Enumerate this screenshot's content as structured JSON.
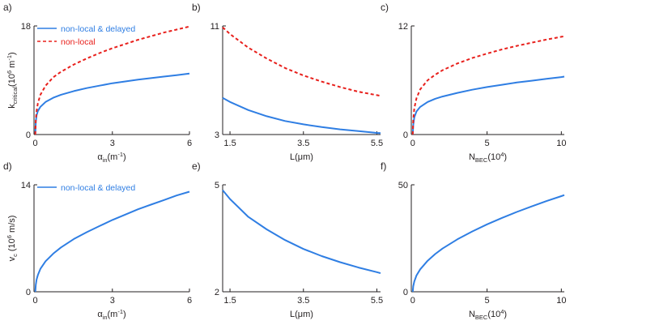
{
  "colors": {
    "solid": "#2f7ee3",
    "dashed": "#e8201c",
    "axis": "#231f20",
    "text": "#231f20"
  },
  "chart_data": [
    {
      "panel": "a)",
      "type": "line",
      "xlabel": {
        "main": "α",
        "sub": "in",
        "rest": "(m",
        "sup": "-1",
        "close": ")"
      },
      "ylabel": {
        "main": "k",
        "sub": "critical",
        "rest": "(10",
        "sup": "6",
        "rest2": " m",
        "sup2": "-1",
        "close": ")"
      },
      "xlim": [
        -0.05,
        6
      ],
      "ylim": [
        0,
        18
      ],
      "xticks": [
        0,
        3,
        6
      ],
      "xtick_labels": [
        "0",
        "3",
        "6"
      ],
      "yticks": [
        0,
        18
      ],
      "ytick_labels": [
        "0",
        "18"
      ],
      "legend": {
        "position": "top-left",
        "entries": [
          "non-local & delayed",
          "non-local"
        ]
      },
      "series": [
        {
          "name": "non-local & delayed",
          "style": "solid",
          "x": [
            0,
            0.02,
            0.05,
            0.1,
            0.2,
            0.4,
            0.7,
            1.0,
            1.5,
            2.0,
            2.5,
            3.0,
            3.5,
            4.0,
            4.5,
            5.0,
            5.5,
            6.0
          ],
          "y": [
            0,
            2.1,
            3.2,
            3.9,
            4.6,
            5.4,
            6.1,
            6.6,
            7.2,
            7.7,
            8.1,
            8.5,
            8.8,
            9.1,
            9.35,
            9.6,
            9.85,
            10.1
          ]
        },
        {
          "name": "non-local",
          "style": "dashed",
          "x": [
            0,
            0.02,
            0.05,
            0.1,
            0.2,
            0.4,
            0.7,
            1.0,
            1.5,
            2.0,
            2.5,
            3.0,
            3.5,
            4.0,
            4.5,
            5.0,
            5.5,
            6.0
          ],
          "y": [
            0,
            2.4,
            3.9,
            5.2,
            6.6,
            8.1,
            9.5,
            10.4,
            11.6,
            12.6,
            13.5,
            14.3,
            15.0,
            15.7,
            16.3,
            16.9,
            17.4,
            17.9
          ]
        }
      ]
    },
    {
      "panel": "b)",
      "type": "line",
      "xlabel": {
        "main": "L(μm)"
      },
      "xlim": [
        1.3,
        5.6
      ],
      "ylim": [
        3,
        11
      ],
      "xticks": [
        1.5,
        3.5,
        5.5
      ],
      "xtick_labels": [
        "1.5",
        "3.5",
        "5.5"
      ],
      "yticks": [
        3,
        11
      ],
      "ytick_labels": [
        "3",
        "11"
      ],
      "series": [
        {
          "name": "non-local & delayed",
          "style": "solid",
          "x": [
            1.3,
            1.5,
            2.0,
            2.5,
            3.0,
            3.5,
            4.0,
            4.5,
            5.0,
            5.5,
            5.6
          ],
          "y": [
            5.7,
            5.4,
            4.8,
            4.35,
            4.0,
            3.75,
            3.55,
            3.38,
            3.25,
            3.12,
            3.1
          ]
        },
        {
          "name": "non-local",
          "style": "dashed",
          "x": [
            1.3,
            1.5,
            2.0,
            2.5,
            3.0,
            3.5,
            4.0,
            4.5,
            5.0,
            5.5,
            5.6
          ],
          "y": [
            10.9,
            10.4,
            9.4,
            8.6,
            7.9,
            7.35,
            6.9,
            6.5,
            6.15,
            5.9,
            5.85
          ]
        }
      ]
    },
    {
      "panel": "c)",
      "type": "line",
      "xlabel": {
        "main": "N",
        "sub": "BEC",
        "rest": "(10",
        "sup": "4",
        "close": ")"
      },
      "xlim": [
        -0.1,
        10.2
      ],
      "ylim": [
        0,
        12
      ],
      "xticks": [
        0,
        5,
        10
      ],
      "xtick_labels": [
        "0",
        "5",
        "10"
      ],
      "yticks": [
        0,
        12
      ],
      "ytick_labels": [
        "0",
        "12"
      ],
      "series": [
        {
          "name": "non-local & delayed",
          "style": "solid",
          "x": [
            0,
            0.03,
            0.1,
            0.25,
            0.5,
            1.0,
            1.5,
            2.0,
            3.0,
            4.0,
            5.0,
            6.0,
            7.0,
            8.0,
            9.0,
            10.0,
            10.2
          ],
          "y": [
            0,
            1.05,
            1.9,
            2.55,
            3.05,
            3.6,
            3.95,
            4.2,
            4.6,
            4.95,
            5.25,
            5.5,
            5.75,
            5.95,
            6.15,
            6.35,
            6.4
          ]
        },
        {
          "name": "non-local",
          "style": "dashed",
          "x": [
            0,
            0.03,
            0.1,
            0.25,
            0.5,
            1.0,
            1.5,
            2.0,
            3.0,
            4.0,
            5.0,
            6.0,
            7.0,
            8.0,
            9.0,
            10.0,
            10.2
          ],
          "y": [
            0,
            1.6,
            2.9,
            4.0,
            5.0,
            6.0,
            6.6,
            7.1,
            7.85,
            8.45,
            8.95,
            9.4,
            9.8,
            10.15,
            10.5,
            10.8,
            10.85
          ]
        }
      ]
    },
    {
      "panel": "d)",
      "type": "line",
      "xlabel": {
        "main": "α",
        "sub": "in",
        "rest": "(m",
        "sup": "-1",
        "close": ")"
      },
      "ylabel": {
        "main": "v",
        "sub": "c",
        "rest": " (10",
        "sup": "6",
        "rest2": " m/s)"
      },
      "xlim": [
        -0.05,
        6
      ],
      "ylim": [
        0,
        14
      ],
      "xticks": [
        0,
        3,
        6
      ],
      "xtick_labels": [
        "0",
        "3",
        "6"
      ],
      "yticks": [
        0,
        14
      ],
      "ytick_labels": [
        "0",
        "14"
      ],
      "legend": {
        "position": "top-left",
        "entries": [
          "non-local & delayed"
        ]
      },
      "series": [
        {
          "name": "non-local & delayed",
          "style": "solid",
          "x": [
            0,
            0.02,
            0.05,
            0.1,
            0.2,
            0.4,
            0.7,
            1.0,
            1.5,
            2.0,
            2.5,
            3.0,
            3.5,
            4.0,
            4.5,
            5.0,
            5.5,
            6.0
          ],
          "y": [
            0,
            0.9,
            1.6,
            2.2,
            3.0,
            4.0,
            5.0,
            5.8,
            6.9,
            7.8,
            8.6,
            9.4,
            10.1,
            10.8,
            11.4,
            12.0,
            12.6,
            13.1
          ]
        }
      ]
    },
    {
      "panel": "e)",
      "type": "line",
      "xlabel": {
        "main": "L(μm)"
      },
      "xlim": [
        1.3,
        5.6
      ],
      "ylim": [
        2,
        5
      ],
      "xticks": [
        1.5,
        3.5,
        5.5
      ],
      "xtick_labels": [
        "1.5",
        "3.5",
        "5.5"
      ],
      "yticks": [
        2,
        5
      ],
      "ytick_labels": [
        "2",
        "5"
      ],
      "series": [
        {
          "name": "non-local & delayed",
          "style": "solid",
          "x": [
            1.3,
            1.5,
            2.0,
            2.5,
            3.0,
            3.5,
            4.0,
            4.5,
            5.0,
            5.5,
            5.6
          ],
          "y": [
            4.85,
            4.6,
            4.1,
            3.75,
            3.45,
            3.2,
            3.0,
            2.83,
            2.68,
            2.55,
            2.52
          ]
        }
      ]
    },
    {
      "panel": "f)",
      "type": "line",
      "xlabel": {
        "main": "N",
        "sub": "BEC",
        "rest": "(10",
        "sup": "4",
        "close": ")"
      },
      "xlim": [
        -0.1,
        10.2
      ],
      "ylim": [
        0,
        50
      ],
      "xticks": [
        0,
        5,
        10
      ],
      "xtick_labels": [
        "0",
        "5",
        "10"
      ],
      "yticks": [
        0,
        50
      ],
      "ytick_labels": [
        "0",
        "50"
      ],
      "series": [
        {
          "name": "non-local & delayed",
          "style": "solid",
          "x": [
            0,
            0.03,
            0.1,
            0.25,
            0.5,
            1.0,
            1.5,
            2.0,
            3.0,
            4.0,
            5.0,
            6.0,
            7.0,
            8.0,
            9.0,
            10.0,
            10.2
          ],
          "y": [
            0,
            2.6,
            4.8,
            7.6,
            10.5,
            14.5,
            17.6,
            20.2,
            24.5,
            28.2,
            31.5,
            34.5,
            37.3,
            39.9,
            42.4,
            44.7,
            45.2
          ]
        }
      ]
    }
  ]
}
